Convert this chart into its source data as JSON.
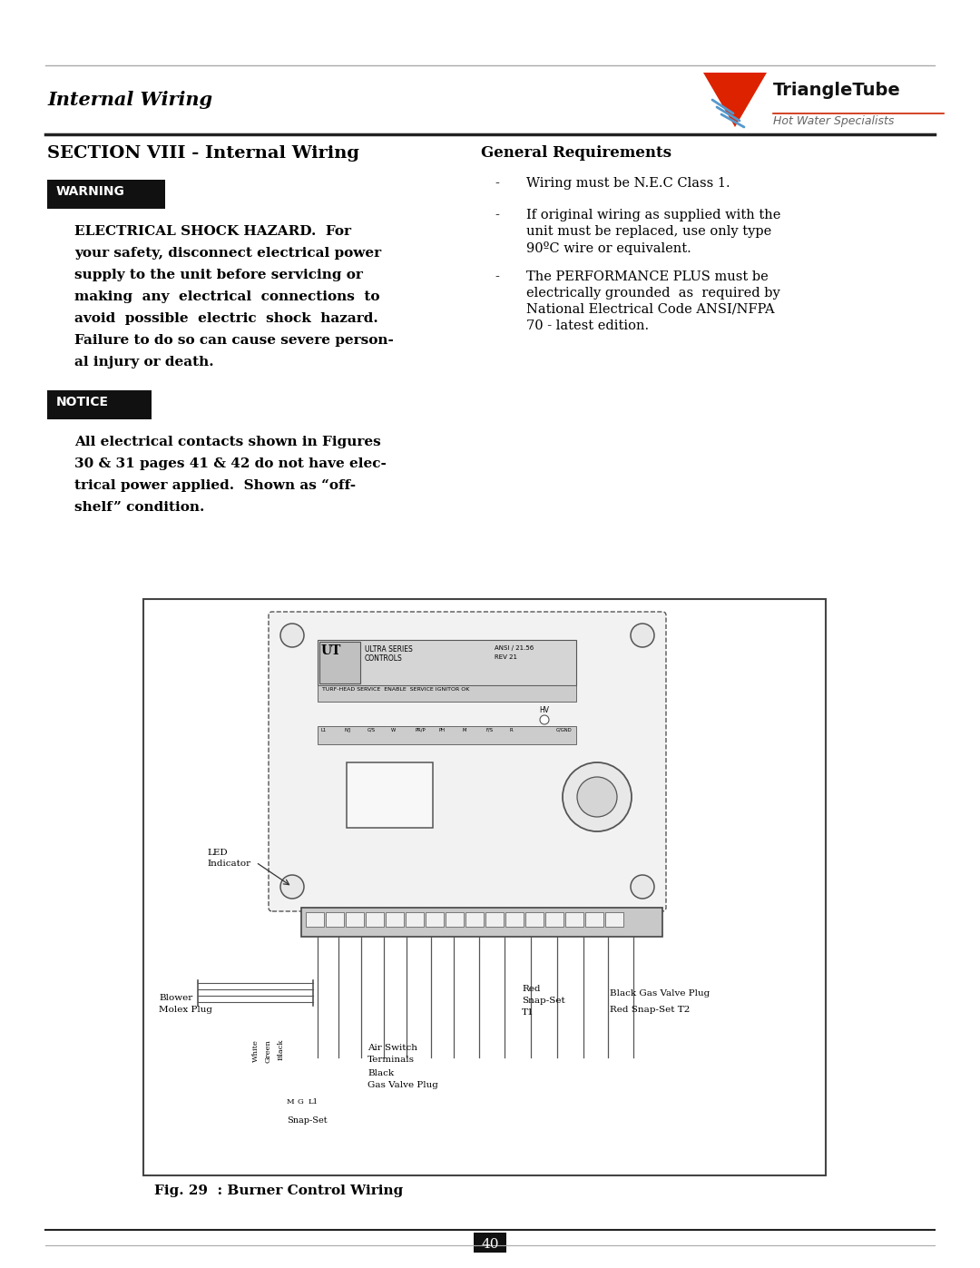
{
  "page_bg": "#ffffff",
  "header_section": "Internal Wiring",
  "section_title": "SECTION VIII - Internal Wiring",
  "general_req_title": "General Requirements",
  "logo_text_main": "TriangleTube",
  "logo_text_sub": "Hot Water Specialists",
  "warning_label": "WARNING",
  "warning_bg": "#111111",
  "warning_text_color": "#ffffff",
  "notice_label": "NOTICE",
  "notice_bg": "#111111",
  "notice_text_color": "#ffffff",
  "bullet_1": "Wiring must be N.E.C Class 1.",
  "bullet_2a": "If original wiring as supplied with the",
  "bullet_2b": "unit must be replaced, use only type",
  "bullet_2c": "90ºC wire or equivalent.",
  "bullet_3a": "The PERFORMANCE PLUS must be",
  "bullet_3b": "electrically grounded  as  required by",
  "bullet_3c": "National Electrical Code ANSI/NFPA",
  "bullet_3d": "70 - latest edition.",
  "warning_line1": "ELECTRICAL SHOCK HAZARD.  For",
  "warning_line2": "your safety, disconnect electrical power",
  "warning_line3": "supply to the unit before servicing or",
  "warning_line4": "making  any  electrical  connections  to",
  "warning_line5": "avoid  possible  electric  shock  hazard.",
  "warning_line6": "Failure to do so can cause severe person-",
  "warning_line7": "al injury or death.",
  "notice_line1": "All electrical contacts shown in Figures",
  "notice_line2": "30 & 31 pages 41 & 42 do not have elec-",
  "notice_line3": "trical power applied.  Shown as “off-",
  "notice_line4": "shelf” condition.",
  "fig_caption": "Fig. 29  : Burner Control Wiring",
  "page_number": "40"
}
